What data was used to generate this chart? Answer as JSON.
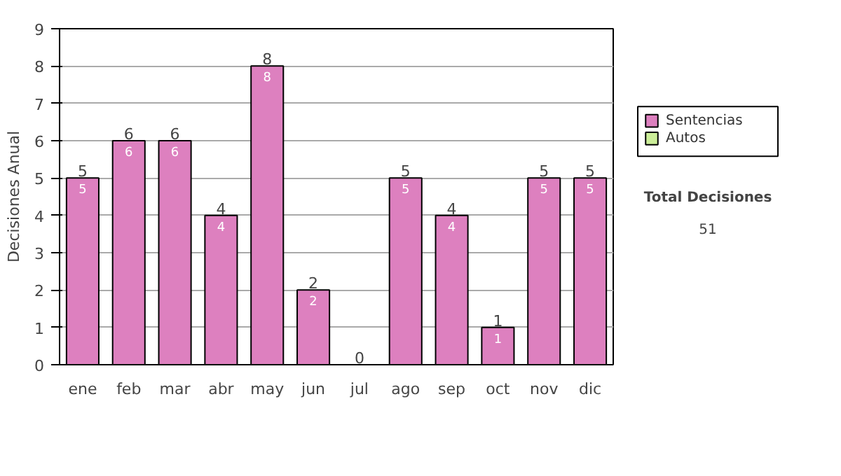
{
  "chart_data": {
    "type": "bar",
    "stacked": true,
    "ylabel": "Decisiones Anual",
    "categories": [
      "ene",
      "feb",
      "mar",
      "abr",
      "may",
      "jun",
      "jul",
      "ago",
      "sep",
      "oct",
      "nov",
      "dic"
    ],
    "series": [
      {
        "name": "Sentencias",
        "color": "#dd80bf",
        "values": [
          5,
          6,
          6,
          4,
          8,
          2,
          0,
          5,
          4,
          1,
          5,
          5
        ],
        "value_labels": [
          "5",
          "6",
          "6",
          "4",
          "8",
          "2",
          null,
          "5",
          "4",
          "1",
          "5",
          "5"
        ]
      },
      {
        "name": "Autos",
        "color": "#ccee99",
        "values": [
          0,
          0,
          0,
          0,
          0,
          0,
          0,
          0,
          0,
          0,
          0,
          0
        ]
      }
    ],
    "totals": [
      "5",
      "6",
      "6",
      "4",
      "8",
      "2",
      "0",
      "5",
      "4",
      "1",
      "5",
      "5"
    ],
    "ylim": [
      0,
      9
    ],
    "yticks": [
      0,
      1,
      2,
      3,
      4,
      5,
      6,
      7,
      8,
      9
    ],
    "grid": "y",
    "legend": "right",
    "annotations": [
      "Total Decisiones",
      "51"
    ]
  }
}
